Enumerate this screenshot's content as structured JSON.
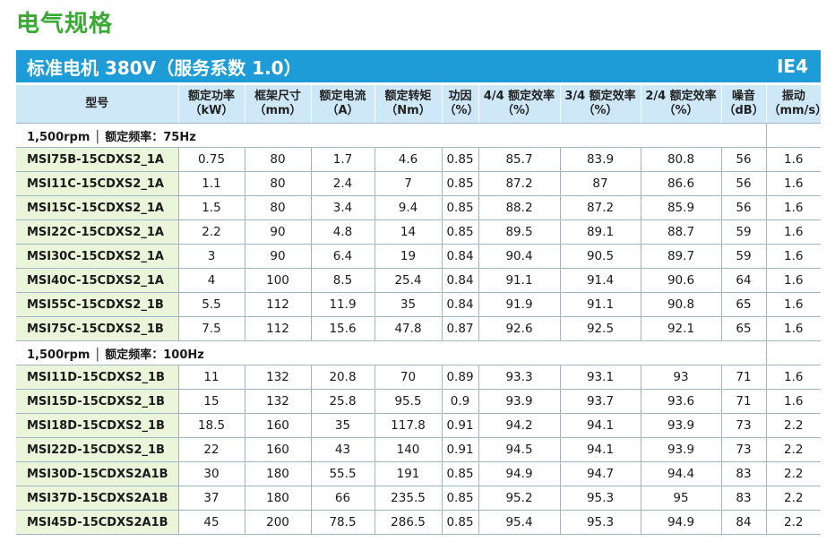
{
  "page": {
    "title": "电气规格"
  },
  "banner": {
    "title": "标准电机 380V（服务系数 1.0）",
    "efficiency_class": "IE4"
  },
  "table": {
    "headers": [
      "型号",
      "额定功率\n（kW）",
      "框架尺寸\n（mm）",
      "额定电流\n（A）",
      "额定转矩\n（Nm）",
      "功因\n（%）",
      "4/4 额定效率\n（%）",
      "3/4 额定效率\n（%）",
      "2/4 额定效率\n（%）",
      "噪音\n（dB）",
      "振动\n（mm/s）"
    ],
    "groups": [
      {
        "label": "1,500rpm │ 额定频率：75Hz",
        "rows": [
          [
            "MSI75B-15CDXS2_1A",
            "0.75",
            "80",
            "1.7",
            "4.6",
            "0.85",
            "85.7",
            "83.9",
            "80.8",
            "56",
            "1.6"
          ],
          [
            "MSI11C-15CDXS2_1A",
            "1.1",
            "80",
            "2.4",
            "7",
            "0.85",
            "87.2",
            "87",
            "86.6",
            "56",
            "1.6"
          ],
          [
            "MSI15C-15CDXS2_1A",
            "1.5",
            "80",
            "3.4",
            "9.4",
            "0.85",
            "88.2",
            "87.2",
            "85.9",
            "56",
            "1.6"
          ],
          [
            "MSI22C-15CDXS2_1A",
            "2.2",
            "90",
            "4.8",
            "14",
            "0.85",
            "89.5",
            "89.1",
            "88.7",
            "59",
            "1.6"
          ],
          [
            "MSI30C-15CDXS2_1A",
            "3",
            "90",
            "6.4",
            "19",
            "0.84",
            "90.4",
            "90.5",
            "89.7",
            "59",
            "1.6"
          ],
          [
            "MSI40C-15CDXS2_1A",
            "4",
            "100",
            "8.5",
            "25.4",
            "0.84",
            "91.1",
            "91.4",
            "90.6",
            "64",
            "1.6"
          ],
          [
            "MSI55C-15CDXS2_1B",
            "5.5",
            "112",
            "11.9",
            "35",
            "0.84",
            "91.9",
            "91.1",
            "90.8",
            "65",
            "1.6"
          ],
          [
            "MSI75C-15CDXS2_1B",
            "7.5",
            "112",
            "15.6",
            "47.8",
            "0.87",
            "92.6",
            "92.5",
            "92.1",
            "65",
            "1.6"
          ]
        ]
      },
      {
        "label": "1,500rpm │ 额定频率：100Hz",
        "rows": [
          [
            "MSI11D-15CDXS2_1B",
            "11",
            "132",
            "20.8",
            "70",
            "0.89",
            "93.3",
            "93.1",
            "93",
            "71",
            "1.6"
          ],
          [
            "MSI15D-15CDXS2_1B",
            "15",
            "132",
            "25.8",
            "95.5",
            "0.9",
            "93.9",
            "93.7",
            "93.6",
            "71",
            "1.6"
          ],
          [
            "MSI18D-15CDXS2_1B",
            "18.5",
            "160",
            "35",
            "117.8",
            "0.91",
            "94.2",
            "94.1",
            "93.9",
            "73",
            "2.2"
          ],
          [
            "MSI22D-15CDXS2_1B",
            "22",
            "160",
            "43",
            "140",
            "0.91",
            "94.5",
            "94.1",
            "93.9",
            "73",
            "2.2"
          ],
          [
            "MSI30D-15CDXS2A1B",
            "30",
            "180",
            "55.5",
            "191",
            "0.85",
            "94.9",
            "94.7",
            "94.4",
            "83",
            "2.2"
          ],
          [
            "MSI37D-15CDXS2A1B",
            "37",
            "180",
            "66",
            "235.5",
            "0.85",
            "95.2",
            "95.3",
            "95",
            "83",
            "2.2"
          ],
          [
            "MSI45D-15CDXS2A1B",
            "45",
            "200",
            "78.5",
            "286.5",
            "0.85",
            "95.4",
            "95.3",
            "94.9",
            "84",
            "2.2"
          ]
        ]
      }
    ]
  },
  "colors": {
    "title_green": "#3aaa35",
    "banner_blue": "#1e9cd7",
    "header_bg": "#cfe8f7",
    "model_cell_bg": "#eaf5d9",
    "grid_line": "#9fb7c4"
  }
}
